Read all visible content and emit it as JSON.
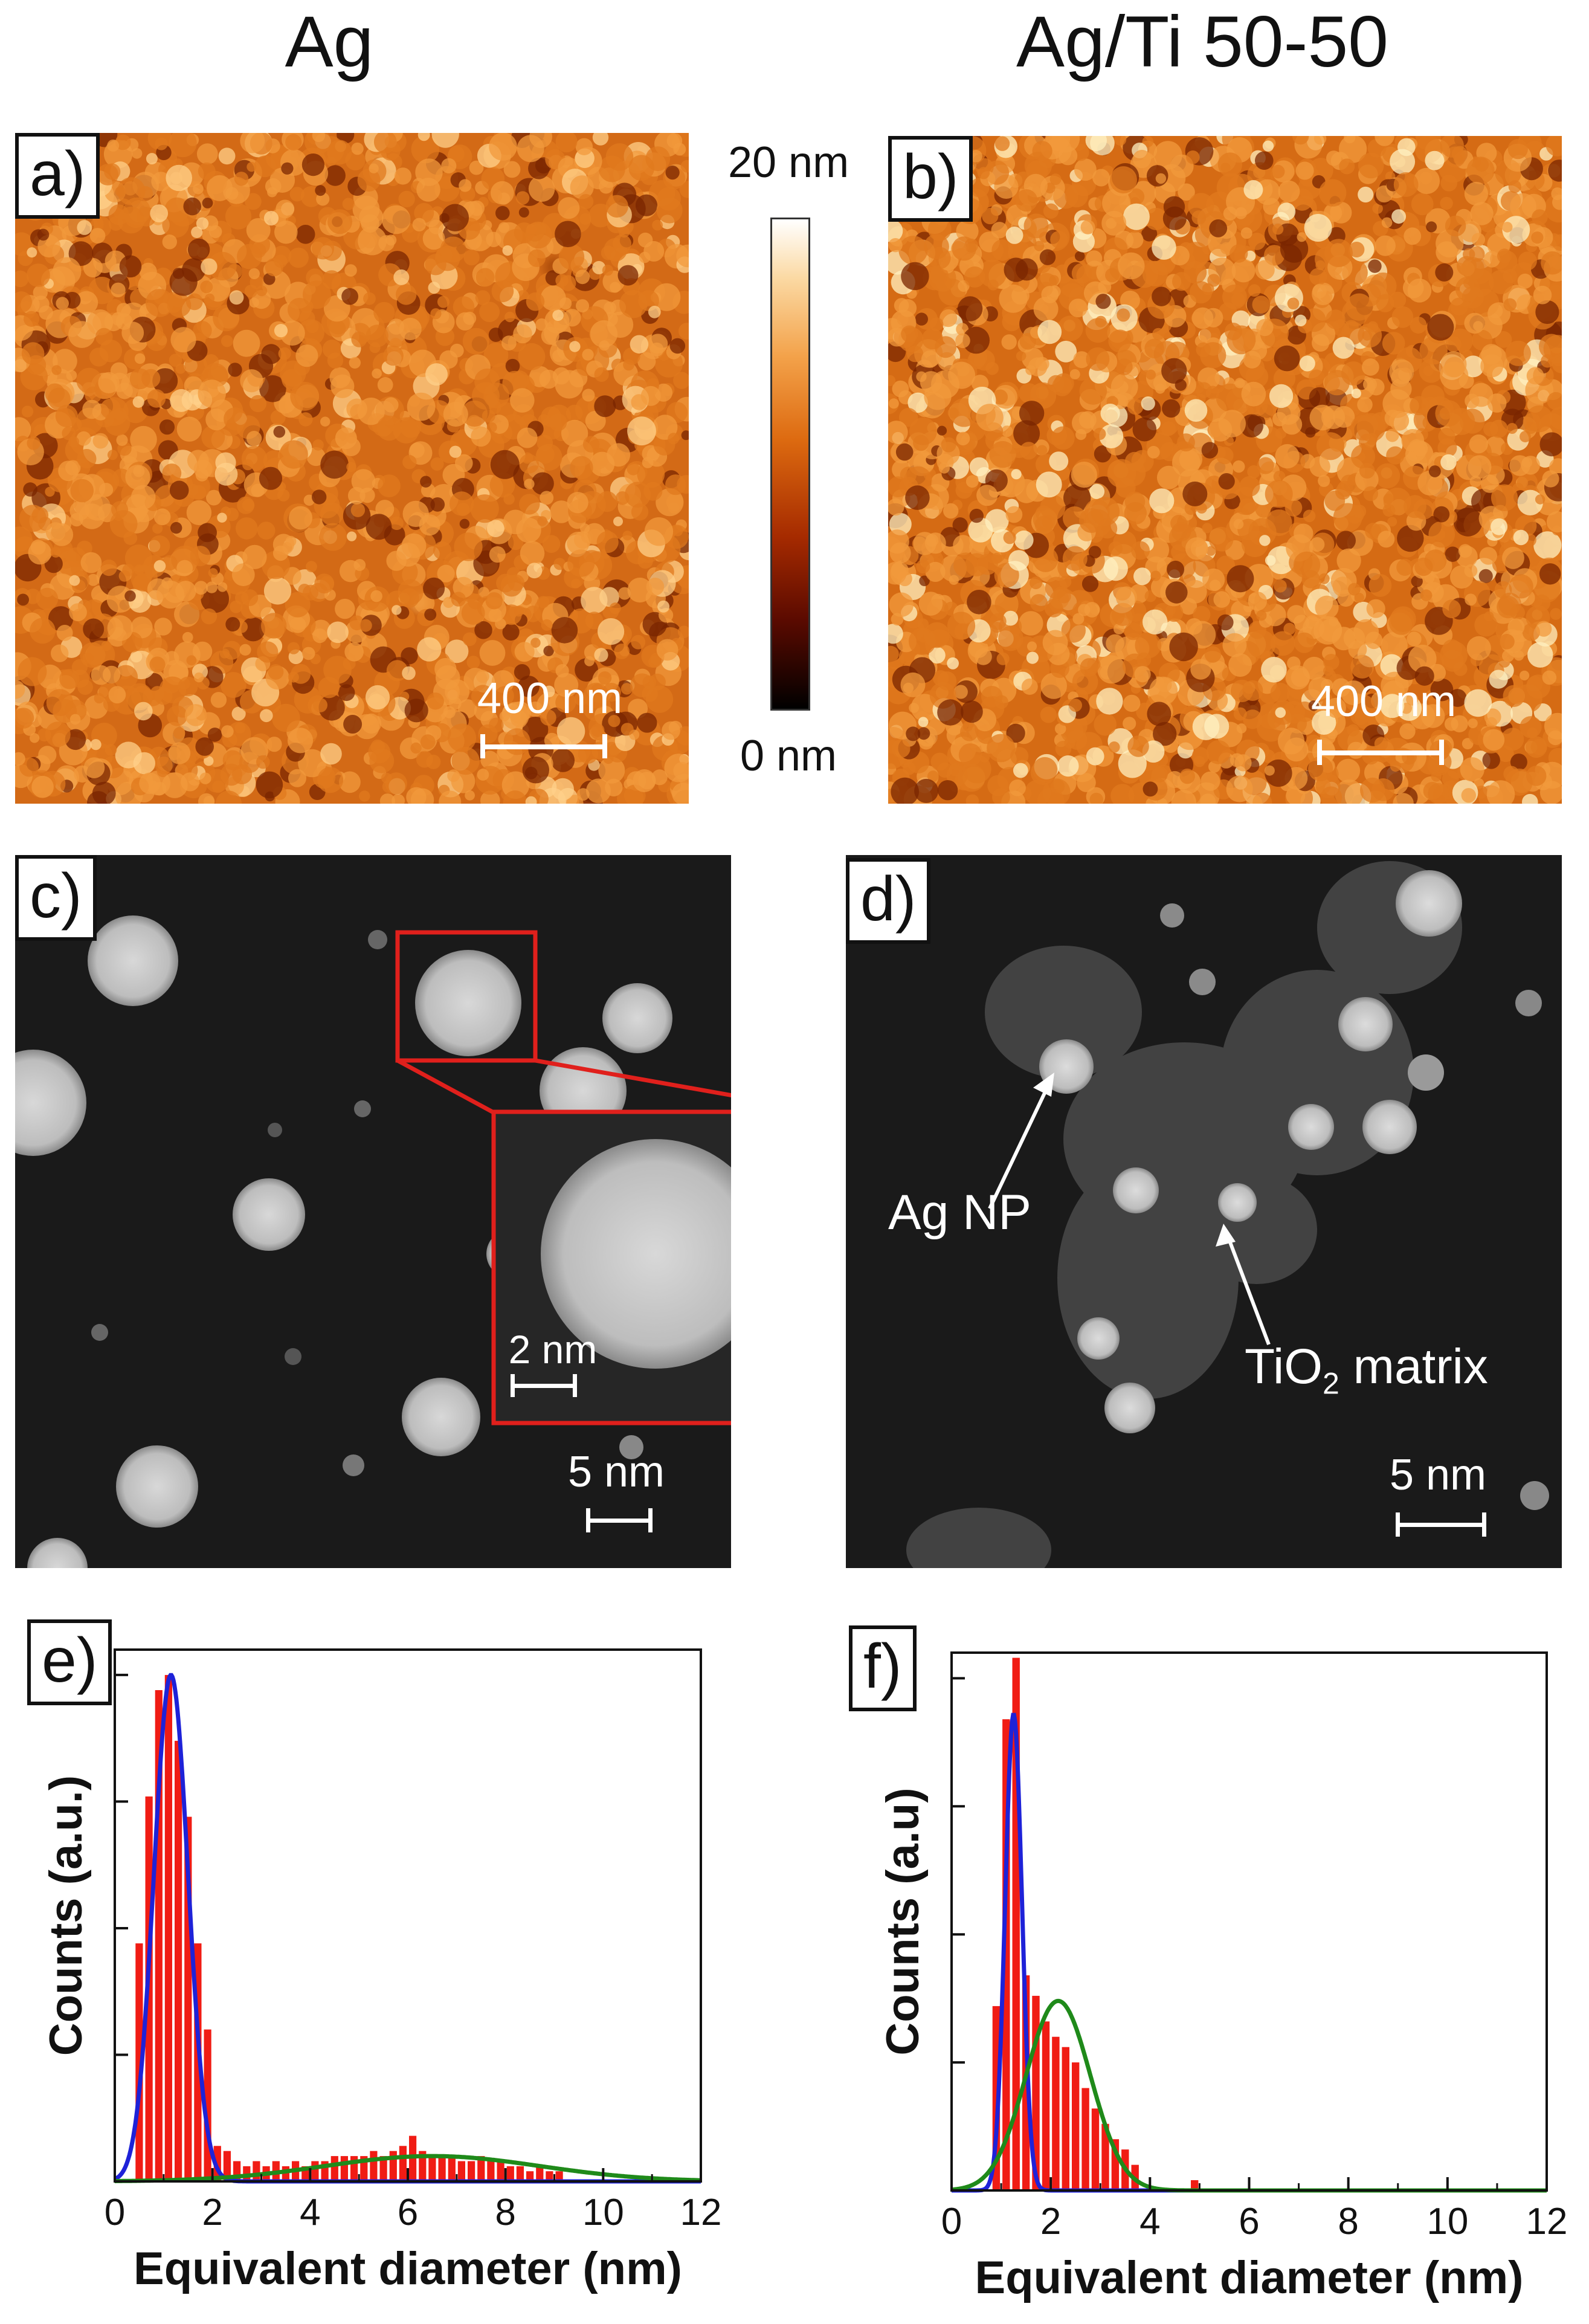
{
  "columns": {
    "left_title": "Ag",
    "right_title": "Ag/Ti 50-50"
  },
  "panels": {
    "a": {
      "label": "a)",
      "scalebar": "400 nm"
    },
    "b": {
      "label": "b)",
      "scalebar": "400 nm"
    },
    "c": {
      "label": "c)",
      "scalebar": "5 nm",
      "inset_scalebar": "2 nm"
    },
    "d": {
      "label": "d)",
      "scalebar": "5 nm",
      "annot_np": "Ag NP",
      "annot_matrix_main": "TiO",
      "annot_matrix_sub": "2",
      "annot_matrix_rest": " matrix"
    },
    "e": {
      "label": "e)"
    },
    "f": {
      "label": "f)"
    }
  },
  "colorbar": {
    "max_label": "20 nm",
    "min_label": "0 nm"
  },
  "chart_data": [
    {
      "type": "bar",
      "panel": "e",
      "xlabel": "Equivalent diameter (nm)",
      "ylabel": "Counts (a.u.)",
      "xlim": [
        0,
        12
      ],
      "ylim": [
        0,
        1.05
      ],
      "xticks": [
        0,
        2,
        4,
        6,
        8,
        10,
        12
      ],
      "bin_width": 0.2,
      "bins_x": [
        0.5,
        0.7,
        0.9,
        1.1,
        1.3,
        1.5,
        1.7,
        1.9,
        2.1,
        2.3,
        2.5,
        2.7,
        2.9,
        3.1,
        3.3,
        3.5,
        3.7,
        3.9,
        4.1,
        4.3,
        4.5,
        4.7,
        4.9,
        5.1,
        5.3,
        5.5,
        5.7,
        5.9,
        6.1,
        6.3,
        6.5,
        6.7,
        6.9,
        7.1,
        7.3,
        7.5,
        7.7,
        7.9,
        8.1,
        8.3,
        8.5,
        8.7,
        8.9,
        9.1
      ],
      "bins_y": [
        0.47,
        0.76,
        0.97,
        1.0,
        0.87,
        0.72,
        0.47,
        0.3,
        0.07,
        0.06,
        0.04,
        0.03,
        0.04,
        0.03,
        0.04,
        0.03,
        0.04,
        0.03,
        0.04,
        0.04,
        0.05,
        0.05,
        0.05,
        0.05,
        0.06,
        0.05,
        0.06,
        0.07,
        0.09,
        0.06,
        0.05,
        0.05,
        0.05,
        0.04,
        0.04,
        0.05,
        0.04,
        0.04,
        0.03,
        0.03,
        0.02,
        0.03,
        0.02,
        0.02
      ],
      "fits": [
        {
          "color": "#1e22d8",
          "peak": 1.0,
          "mu": 1.15,
          "sigma": 0.35
        },
        {
          "color": "#1f8a1a",
          "peak": 0.05,
          "mu": 6.5,
          "sigma": 2.2
        }
      ]
    },
    {
      "type": "bar",
      "panel": "f",
      "xlabel": "Equivalent diameter (nm)",
      "ylabel": "Counts (a.u)",
      "xlim": [
        0,
        12
      ],
      "ylim": [
        0,
        1.05
      ],
      "xticks": [
        0,
        2,
        4,
        6,
        8,
        10,
        12
      ],
      "bin_width": 0.2,
      "bins_x": [
        0.9,
        1.1,
        1.3,
        1.5,
        1.7,
        1.9,
        2.1,
        2.3,
        2.5,
        2.7,
        2.9,
        3.1,
        3.3,
        3.5,
        3.7,
        4.9
      ],
      "bins_y": [
        0.36,
        0.92,
        1.04,
        0.42,
        0.38,
        0.33,
        0.3,
        0.28,
        0.25,
        0.2,
        0.16,
        0.13,
        0.1,
        0.08,
        0.05,
        0.02
      ],
      "fits": [
        {
          "color": "#1e22d8",
          "peak": 0.93,
          "mu": 1.25,
          "sigma": 0.17
        },
        {
          "color": "#1f8a1a",
          "peak": 0.37,
          "mu": 2.15,
          "sigma": 0.65
        }
      ]
    }
  ]
}
